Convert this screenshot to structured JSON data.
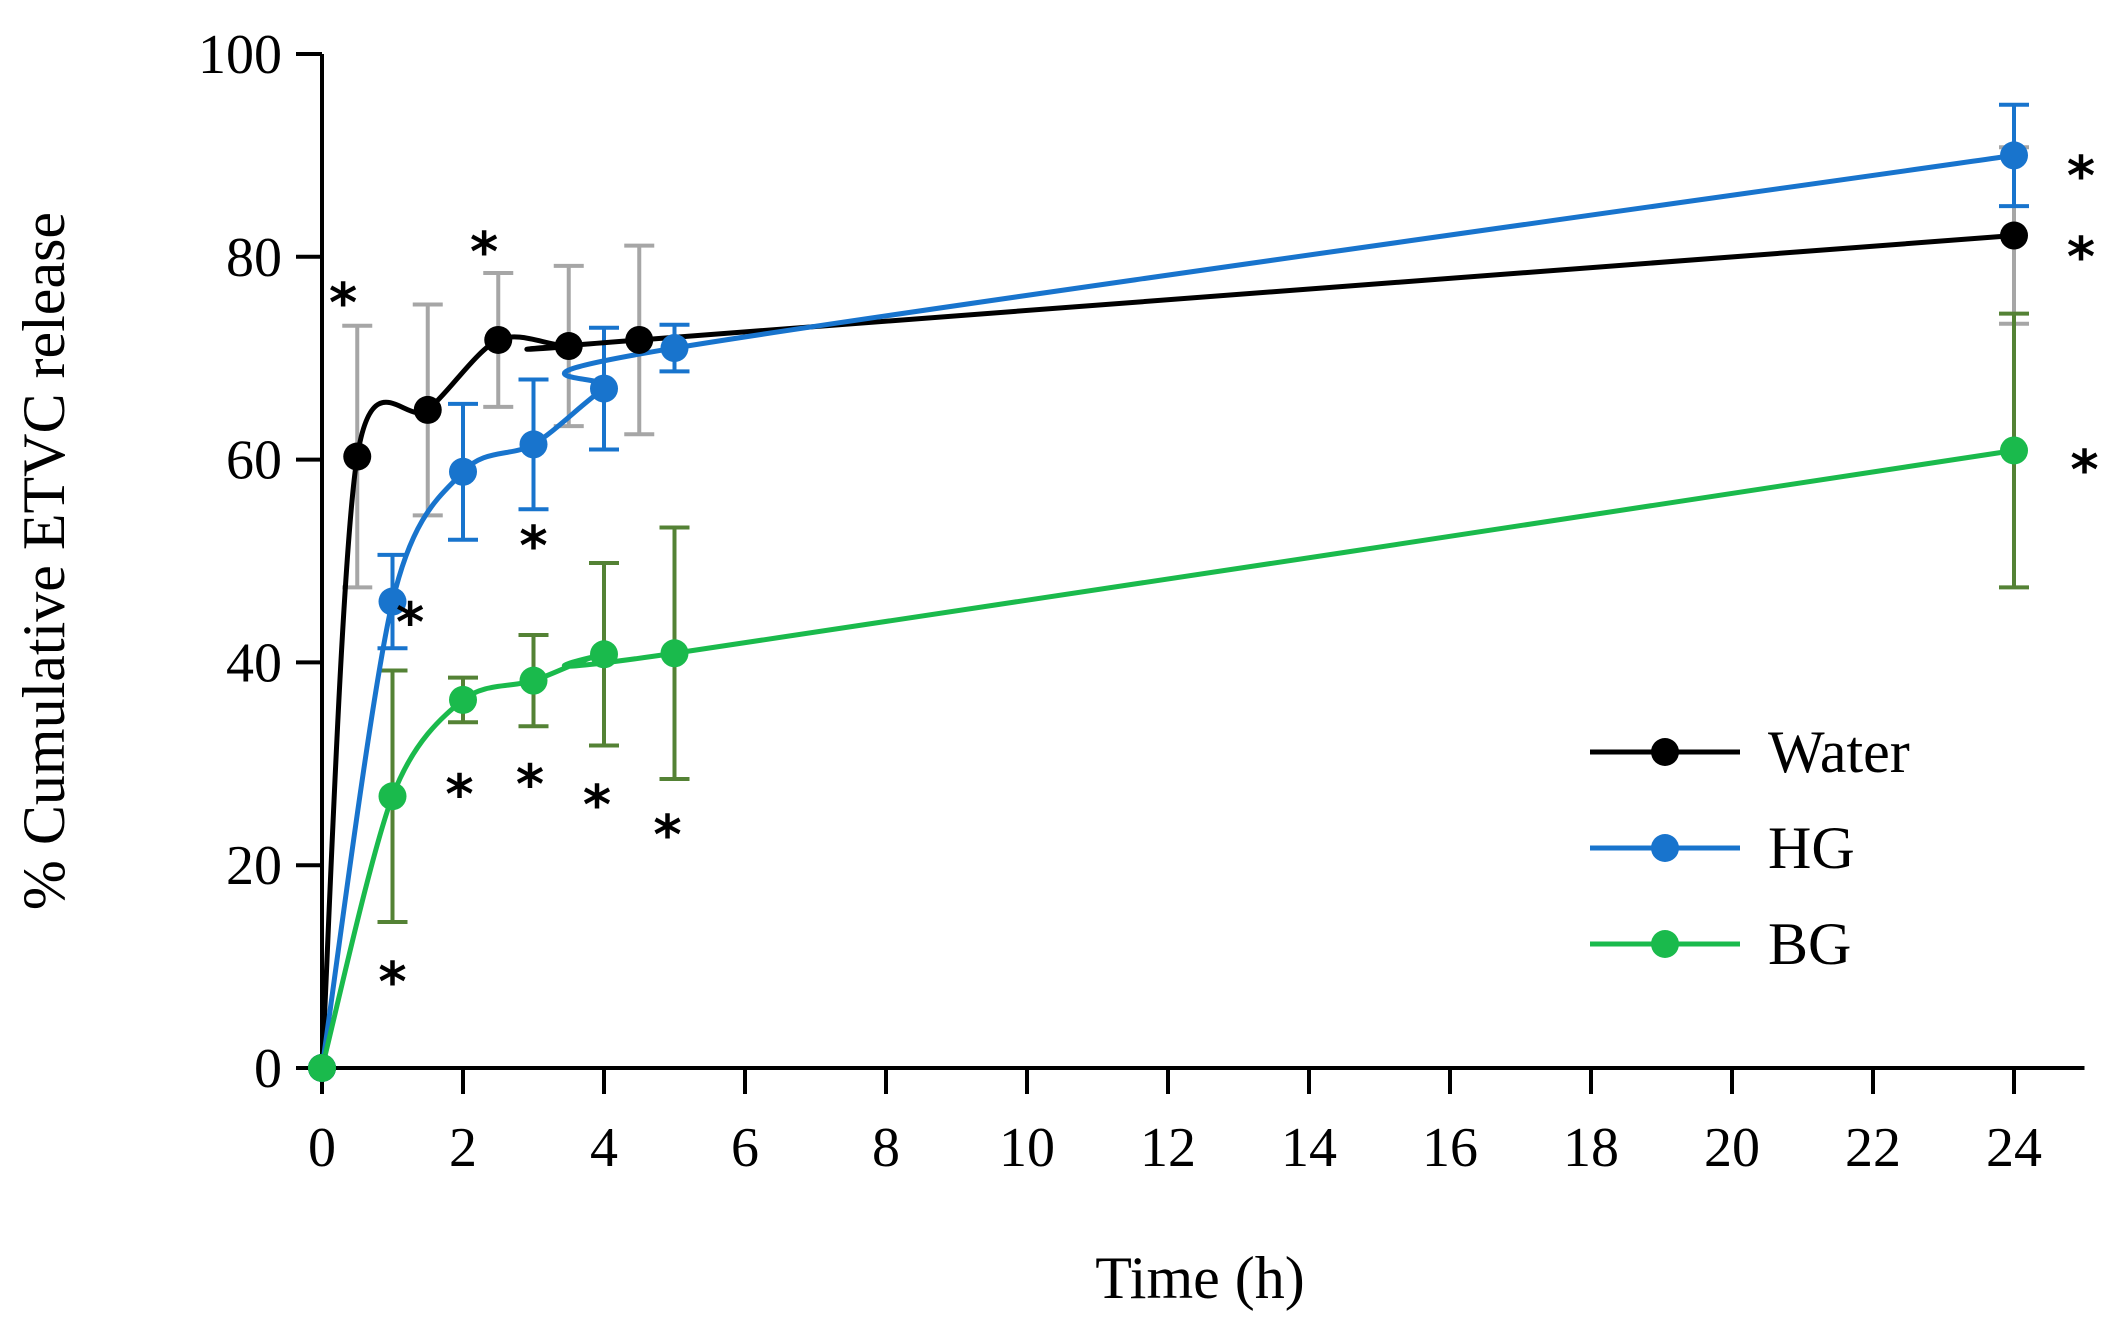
{
  "chart_data": {
    "type": "line",
    "title": "",
    "xlabel": "Time (h)",
    "ylabel": "% Cumulative ETVC release",
    "xlim": [
      0,
      25
    ],
    "ylim": [
      0,
      100
    ],
    "x_ticks": [
      "0",
      "2",
      "4",
      "6",
      "8",
      "10",
      "12",
      "14",
      "16",
      "18",
      "20",
      "22",
      "24"
    ],
    "y_ticks": [
      "0",
      "20",
      "40",
      "60",
      "80",
      "100"
    ],
    "legend_position": "bottom-right",
    "series": [
      {
        "name": "Water",
        "color": "#000000",
        "error_color": "#a6a6a6",
        "x": [
          0,
          0.5,
          1.5,
          2.5,
          3.5,
          4.5,
          24
        ],
        "y": [
          0,
          60.3,
          64.9,
          71.8,
          71.2,
          71.8,
          82.1
        ],
        "err": [
          0,
          12.9,
          10.4,
          6.6,
          7.9,
          9.3,
          8.7
        ]
      },
      {
        "name": "HG",
        "color": "#1874cd",
        "error_color": "#1874cd",
        "x": [
          0,
          1,
          2,
          3,
          4,
          5,
          24
        ],
        "y": [
          0,
          46.0,
          58.8,
          61.5,
          67.0,
          71.0,
          90.0
        ],
        "err": [
          0,
          4.6,
          6.7,
          6.4,
          6.0,
          2.3,
          5.0
        ]
      },
      {
        "name": "BG",
        "color": "#1aba4c",
        "error_color": "#548235",
        "x": [
          0,
          1,
          2,
          3,
          4,
          5,
          24
        ],
        "y": [
          0,
          26.8,
          36.3,
          38.2,
          40.8,
          40.9,
          60.9
        ],
        "err": [
          0,
          12.4,
          2.2,
          4.5,
          9.0,
          12.4,
          13.5
        ]
      }
    ],
    "annotations": [
      {
        "text": "*",
        "x": 0.3,
        "y": 76
      },
      {
        "text": "*",
        "x": 2.3,
        "y": 81
      },
      {
        "text": "*",
        "x": 1.25,
        "y": 44.5
      },
      {
        "text": "*",
        "x": 3.0,
        "y": 52
      },
      {
        "text": "*",
        "x": 1.0,
        "y": 9
      },
      {
        "text": "*",
        "x": 1.95,
        "y": 27.5
      },
      {
        "text": "*",
        "x": 2.95,
        "y": 28.5
      },
      {
        "text": "*",
        "x": 3.9,
        "y": 26.5
      },
      {
        "text": "*",
        "x": 4.9,
        "y": 23.5
      },
      {
        "text": "*",
        "x": 24.95,
        "y": 88.5
      },
      {
        "text": "*",
        "x": 24.95,
        "y": 80.5
      },
      {
        "text": "*",
        "x": 25.0,
        "y": 59.5
      }
    ]
  }
}
